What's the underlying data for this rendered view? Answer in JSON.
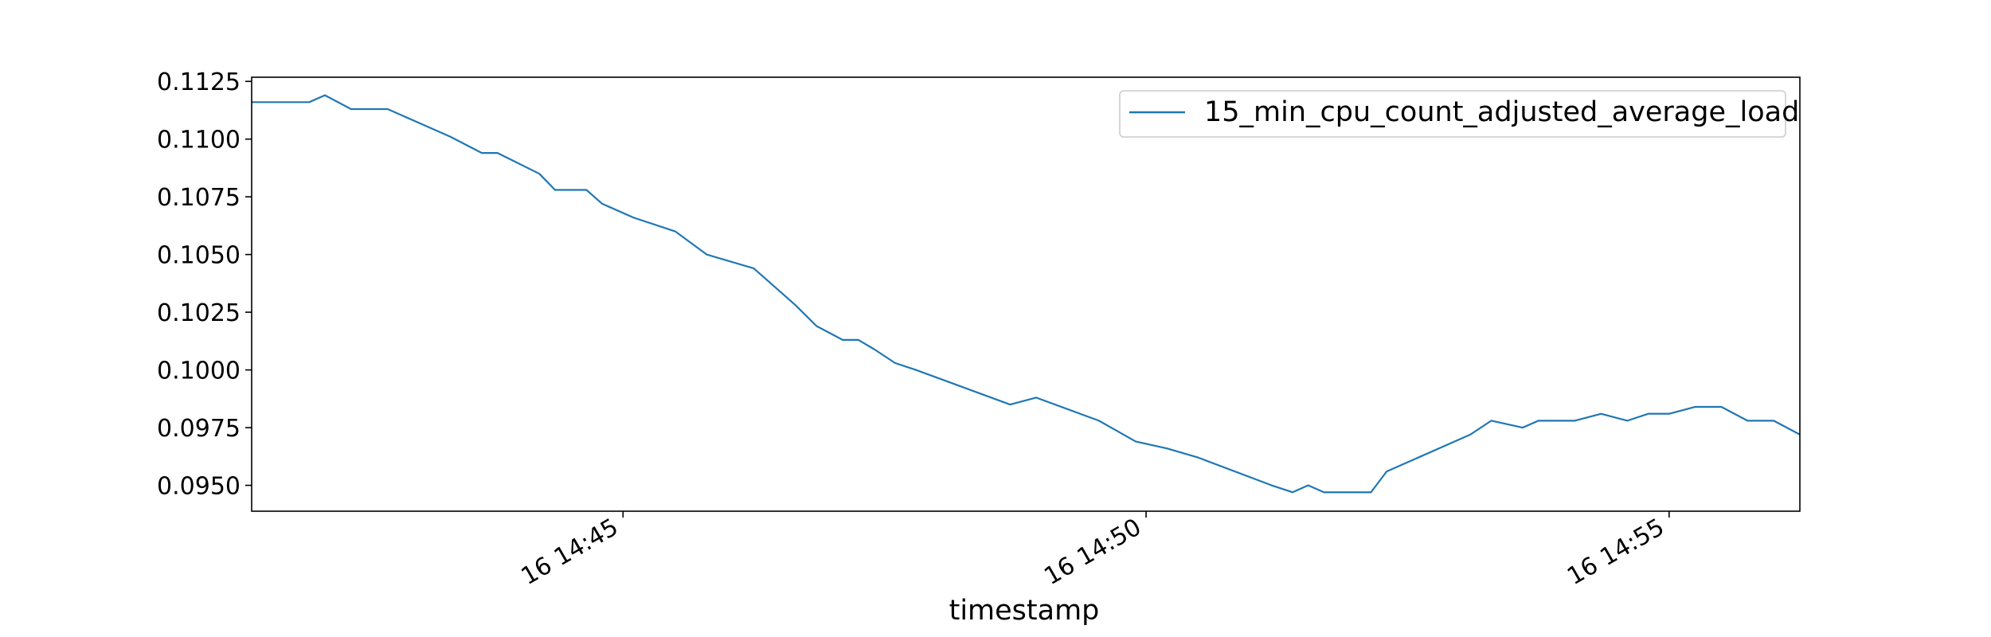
{
  "chart_data": {
    "type": "line",
    "title": "",
    "xlabel": "timestamp",
    "ylabel": "",
    "x_tick_labels": [
      "16 14:45",
      "16 14:50",
      "16 14:55"
    ],
    "x_ticks": [
      "14:45:00",
      "14:50:00",
      "14:55:00"
    ],
    "xlim": [
      "14:41:27",
      "14:56:15"
    ],
    "y_tick_labels": [
      "0.0950",
      "0.0975",
      "0.1000",
      "0.1025",
      "0.1050",
      "0.1075",
      "0.1100",
      "0.1125"
    ],
    "y_ticks": [
      0.095,
      0.0975,
      0.1,
      0.1025,
      0.105,
      0.1075,
      0.11,
      0.1125
    ],
    "ylim": [
      0.09388,
      0.11268
    ],
    "grid": false,
    "legend_position": "top-right",
    "colors": {
      "series": "#1f77b4",
      "axes": "#000000",
      "legend_border": "#cccccc"
    },
    "series": [
      {
        "name": "15_min_cpu_count_adjusted_average_load",
        "x": [
          "14:41:27",
          "14:42:00",
          "14:42:09",
          "14:42:24",
          "14:42:45",
          "14:43:03",
          "14:43:21",
          "14:43:39",
          "14:43:48",
          "14:44:12",
          "14:44:21",
          "14:44:39",
          "14:44:48",
          "14:45:06",
          "14:45:30",
          "14:45:48",
          "14:46:15",
          "14:46:39",
          "14:46:51",
          "14:47:06",
          "14:47:15",
          "14:47:24",
          "14:47:36",
          "14:47:48",
          "14:48:42",
          "14:48:57",
          "14:49:33",
          "14:49:54",
          "14:50:12",
          "14:50:30",
          "14:51:12",
          "14:51:24",
          "14:51:33",
          "14:51:42",
          "14:52:09",
          "14:52:18",
          "14:52:48",
          "14:53:06",
          "14:53:18",
          "14:53:36",
          "14:53:45",
          "14:54:06",
          "14:54:21",
          "14:54:36",
          "14:54:48",
          "14:55:00",
          "14:55:15",
          "14:55:30",
          "14:55:45",
          "14:56:00",
          "14:56:15"
        ],
        "y": [
          0.1116,
          0.1116,
          0.1119,
          0.1113,
          0.1113,
          0.1107,
          0.1101,
          0.1094,
          0.1094,
          0.1085,
          0.1078,
          0.1078,
          0.1072,
          0.1066,
          0.106,
          0.105,
          0.1044,
          0.1028,
          0.1019,
          0.1013,
          0.1013,
          0.1009,
          0.1003,
          0.1,
          0.0985,
          0.0988,
          0.0978,
          0.0969,
          0.0966,
          0.0962,
          0.095,
          0.0947,
          0.095,
          0.0947,
          0.0947,
          0.0956,
          0.0966,
          0.0972,
          0.0978,
          0.0975,
          0.0978,
          0.0978,
          0.0981,
          0.0978,
          0.0981,
          0.0981,
          0.0984,
          0.0984,
          0.0978,
          0.0978,
          0.0972
        ]
      }
    ]
  }
}
